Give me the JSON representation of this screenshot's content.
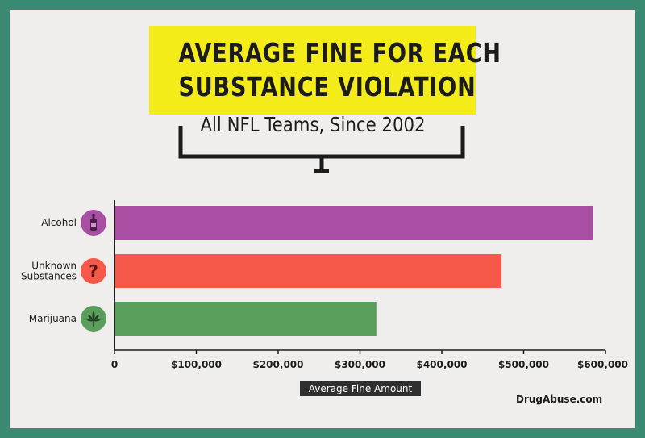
{
  "title": {
    "line1": "AVERAGE FINE FOR EACH",
    "line2": "SUBSTANCE VIOLATION"
  },
  "subtitle": "All NFL Teams, Since 2002",
  "footer": "DrugAbuse.com",
  "icons": {
    "Alcohol": "wine-bottle-icon",
    "Unknown Substances": "question-mark-icon",
    "Marijuana": "cannabis-leaf-icon"
  },
  "colors": {
    "background": "#efeeec",
    "frame": "#3a8a73",
    "title_highlight": "#f3ec19",
    "Alcohol": "#a84ea3",
    "Unknown Substances": "#f6594a",
    "Marijuana": "#5a9e5c"
  },
  "chart_data": {
    "type": "bar",
    "orientation": "horizontal",
    "categories": [
      "Alcohol",
      "Unknown Substances",
      "Marijuana"
    ],
    "category_label_lines": [
      [
        "Alcohol"
      ],
      [
        "Unknown",
        "Substances"
      ],
      [
        "Marijuana"
      ]
    ],
    "values": [
      585000,
      473000,
      320000
    ],
    "xlabel": "Average Fine Amount",
    "xlim": [
      0,
      600000
    ],
    "xticks": [
      0,
      100000,
      200000,
      300000,
      400000,
      500000,
      600000
    ],
    "xtick_labels": [
      "0",
      "$100,000",
      "$200,000",
      "$300,000",
      "$400,000",
      "$500,000",
      "$600,000"
    ],
    "grid": false,
    "legend": "none"
  }
}
